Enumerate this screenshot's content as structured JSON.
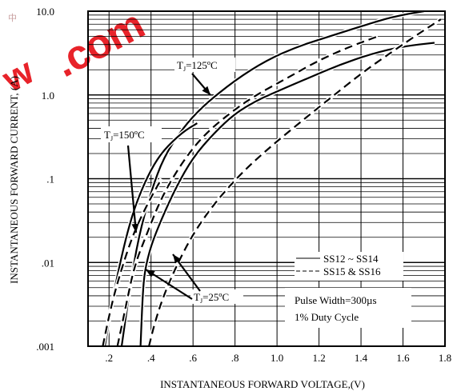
{
  "watermark": {
    "text_dot": ".com",
    "text_left": "w",
    "badge": "中"
  },
  "chart_data": {
    "type": "line",
    "title": "",
    "xlabel": "INSTANTANEOUS FORWARD VOLTAGE,(V)",
    "ylabel": "INSTANTANEOUS FORWARD CURRENT, (A)",
    "xlim": [
      0.1,
      1.8
    ],
    "ylim": [
      0.001,
      10
    ],
    "y_scale": "log",
    "grid": true,
    "x_ticks": [
      0.2,
      0.4,
      0.6,
      0.8,
      1.0,
      1.2,
      1.4,
      1.6,
      1.8
    ],
    "x_tick_labels": [
      ".2",
      ".4",
      ".6",
      ".8",
      "1.0",
      "1.2",
      "1.4",
      "1.6",
      "1.8"
    ],
    "y_ticks": [
      0.001,
      0.01,
      0.1,
      1,
      10
    ],
    "y_tick_labels": [
      ".001",
      ".01",
      ".1",
      "1.0",
      "10.0"
    ],
    "legend": {
      "placement": "lower-right",
      "entries": [
        {
          "label": "SS12 ~ SS14",
          "style": "solid"
        },
        {
          "label": "SS15 & SS16",
          "style": "dashed"
        }
      ]
    },
    "info_box": {
      "lines": [
        "Pulse Width=300µs",
        "1% Duty Cycle"
      ]
    },
    "annotations": [
      {
        "text": "T₁=125ºC",
        "sub": "J",
        "base": "T",
        "rest": "=125ºC"
      },
      {
        "text": "T₁=150ºC",
        "sub": "J",
        "base": "T",
        "rest": "=150ºC"
      },
      {
        "text": "T₁=25ºC",
        "sub": "J",
        "base": "T",
        "rest": "=25ºC"
      }
    ],
    "series": [
      {
        "style": "solid",
        "temp_label": "125",
        "points": [
          [
            0.26,
            0.001
          ],
          [
            0.3,
            0.005
          ],
          [
            0.34,
            0.02
          ],
          [
            0.4,
            0.07
          ],
          [
            0.46,
            0.18
          ],
          [
            0.55,
            0.4
          ],
          [
            0.65,
            0.75
          ],
          [
            0.8,
            1.5
          ],
          [
            0.95,
            2.6
          ],
          [
            1.1,
            3.8
          ],
          [
            1.25,
            5.0
          ],
          [
            1.4,
            6.6
          ],
          [
            1.55,
            8.6
          ],
          [
            1.7,
            10.0
          ]
        ]
      },
      {
        "style": "solid",
        "temp_label": "150",
        "points": [
          [
            0.18,
            0.001
          ],
          [
            0.22,
            0.004
          ],
          [
            0.26,
            0.012
          ],
          [
            0.3,
            0.03
          ],
          [
            0.34,
            0.06
          ],
          [
            0.4,
            0.13
          ],
          [
            0.46,
            0.22
          ],
          [
            0.55,
            0.36
          ],
          [
            0.62,
            0.46
          ]
        ]
      },
      {
        "style": "solid",
        "temp_label": "25",
        "points": [
          [
            0.35,
            0.001
          ],
          [
            0.36,
            0.004
          ],
          [
            0.37,
            0.008
          ],
          [
            0.4,
            0.016
          ],
          [
            0.45,
            0.033
          ],
          [
            0.52,
            0.08
          ],
          [
            0.6,
            0.18
          ],
          [
            0.7,
            0.35
          ],
          [
            0.8,
            0.6
          ],
          [
            0.9,
            0.85
          ],
          [
            1.0,
            1.1
          ],
          [
            1.15,
            1.6
          ],
          [
            1.3,
            2.3
          ],
          [
            1.45,
            3.1
          ],
          [
            1.6,
            3.8
          ],
          [
            1.75,
            4.2
          ]
        ]
      },
      {
        "style": "dashed",
        "temp_label": "125",
        "points": [
          [
            0.24,
            0.001
          ],
          [
            0.28,
            0.003
          ],
          [
            0.32,
            0.009
          ],
          [
            0.38,
            0.022
          ],
          [
            0.45,
            0.06
          ],
          [
            0.55,
            0.16
          ],
          [
            0.65,
            0.33
          ],
          [
            0.78,
            0.62
          ],
          [
            0.9,
            1.0
          ],
          [
            1.05,
            1.6
          ],
          [
            1.2,
            2.6
          ],
          [
            1.35,
            3.8
          ],
          [
            1.48,
            5.0
          ]
        ]
      },
      {
        "style": "dashed",
        "temp_label": "150",
        "points": [
          [
            0.17,
            0.001
          ],
          [
            0.21,
            0.003
          ],
          [
            0.25,
            0.007
          ],
          [
            0.3,
            0.017
          ],
          [
            0.34,
            0.03
          ],
          [
            0.4,
            0.06
          ],
          [
            0.45,
            0.1
          ]
        ]
      },
      {
        "style": "dashed",
        "temp_label": "25",
        "points": [
          [
            0.39,
            0.001
          ],
          [
            0.42,
            0.002
          ],
          [
            0.46,
            0.004
          ],
          [
            0.52,
            0.009
          ],
          [
            0.6,
            0.022
          ],
          [
            0.7,
            0.05
          ],
          [
            0.82,
            0.11
          ],
          [
            0.95,
            0.22
          ],
          [
            1.1,
            0.45
          ],
          [
            1.25,
            0.9
          ],
          [
            1.4,
            1.8
          ],
          [
            1.55,
            3.3
          ],
          [
            1.68,
            5.5
          ],
          [
            1.78,
            8.0
          ]
        ]
      }
    ]
  }
}
